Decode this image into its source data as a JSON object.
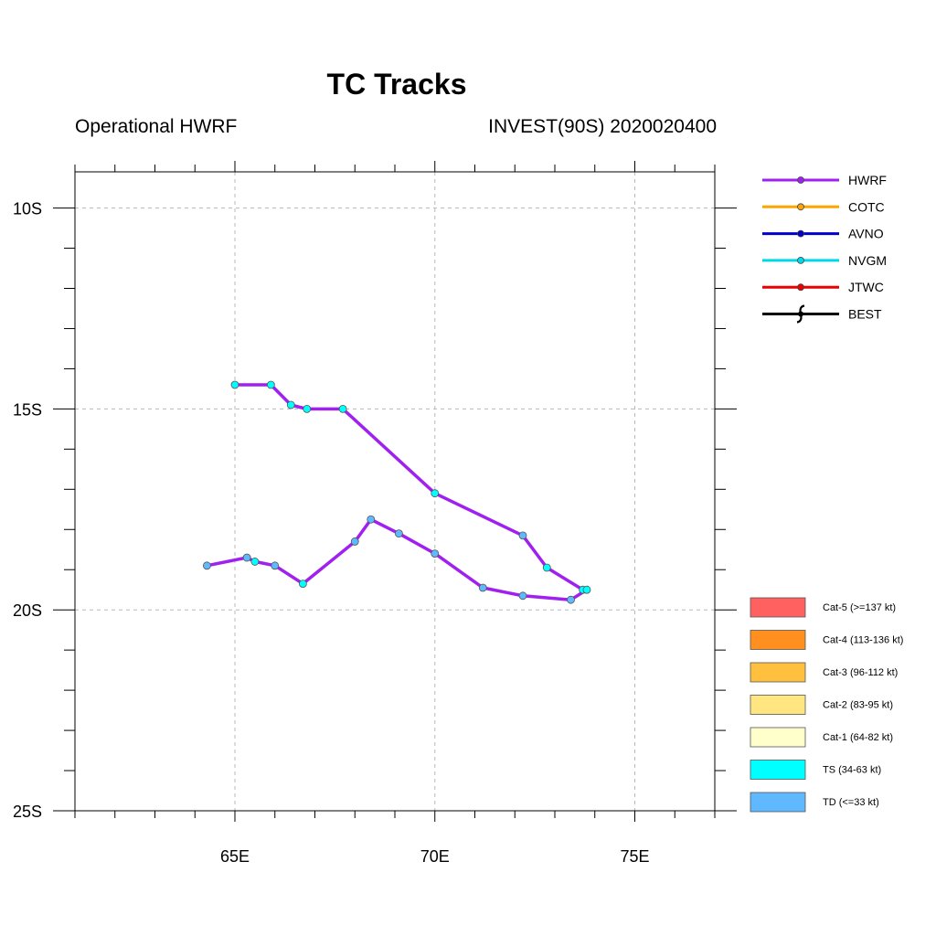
{
  "chart_data": {
    "type": "line",
    "title": "TC Tracks",
    "subtitle_left": "Operational HWRF",
    "subtitle_right": "INVEST(90S) 2020020400",
    "xlim": [
      61,
      77
    ],
    "ylim": [
      -25,
      -9.1
    ],
    "x_ticks": [
      {
        "value": 65,
        "label": "65E"
      },
      {
        "value": 70,
        "label": "70E"
      },
      {
        "value": 75,
        "label": "75E"
      }
    ],
    "y_ticks": [
      {
        "value": -10,
        "label": "10S"
      },
      {
        "value": -15,
        "label": "15S"
      },
      {
        "value": -20,
        "label": "20S"
      },
      {
        "value": -25,
        "label": "25S"
      }
    ],
    "grid": true,
    "legend_placement": "right",
    "series": [
      {
        "name": "HWRF",
        "color": "#a020f0",
        "points": [
          {
            "lon": 65.0,
            "lat": -14.4,
            "cat": "TS"
          },
          {
            "lon": 65.9,
            "lat": -14.4,
            "cat": "TS"
          },
          {
            "lon": 66.4,
            "lat": -14.9,
            "cat": "TS"
          },
          {
            "lon": 66.8,
            "lat": -15.0,
            "cat": "TS"
          },
          {
            "lon": 67.7,
            "lat": -15.0,
            "cat": "TS"
          },
          {
            "lon": 70.0,
            "lat": -17.1,
            "cat": "TS"
          },
          {
            "lon": 72.2,
            "lat": -18.15,
            "cat": "TD"
          },
          {
            "lon": 72.8,
            "lat": -18.95,
            "cat": "TS"
          },
          {
            "lon": 73.7,
            "lat": -19.5,
            "cat": "TS"
          },
          {
            "lon": 73.8,
            "lat": -19.5,
            "cat": "TS"
          },
          {
            "lon": 73.4,
            "lat": -19.75,
            "cat": "TD"
          },
          {
            "lon": 72.2,
            "lat": -19.65,
            "cat": "TD"
          },
          {
            "lon": 71.2,
            "lat": -19.45,
            "cat": "TD"
          },
          {
            "lon": 70.0,
            "lat": -18.6,
            "cat": "TD"
          },
          {
            "lon": 69.1,
            "lat": -18.1,
            "cat": "TD"
          },
          {
            "lon": 68.4,
            "lat": -17.75,
            "cat": "TD"
          },
          {
            "lon": 68.0,
            "lat": -18.3,
            "cat": "TD"
          },
          {
            "lon": 66.7,
            "lat": -19.35,
            "cat": "TS"
          },
          {
            "lon": 66.0,
            "lat": -18.9,
            "cat": "TD"
          },
          {
            "lon": 65.5,
            "lat": -18.8,
            "cat": "TS"
          },
          {
            "lon": 65.3,
            "lat": -18.7,
            "cat": "TD"
          },
          {
            "lon": 64.3,
            "lat": -18.9,
            "cat": "TD"
          }
        ]
      }
    ],
    "legend": [
      {
        "name": "HWRF",
        "color": "#a020f0",
        "marker": "circle"
      },
      {
        "name": "COTC",
        "color": "#ffa500",
        "marker": "circle"
      },
      {
        "name": "AVNO",
        "color": "#0000cd",
        "marker": "circle"
      },
      {
        "name": "NVGM",
        "color": "#00d8e8",
        "marker": "circle"
      },
      {
        "name": "JTWC",
        "color": "#ee0000",
        "marker": "circle"
      },
      {
        "name": "BEST",
        "color": "#000000",
        "marker": "hurricane"
      }
    ],
    "categories": [
      {
        "key": "Cat-5",
        "label": "Cat-5 (>=137 kt)",
        "color": "#ff6060"
      },
      {
        "key": "Cat-4",
        "label": "Cat-4 (113-136 kt)",
        "color": "#ff9020"
      },
      {
        "key": "Cat-3",
        "label": "Cat-3 (96-112 kt)",
        "color": "#ffc040"
      },
      {
        "key": "Cat-2",
        "label": "Cat-2 (83-95 kt)",
        "color": "#ffe680"
      },
      {
        "key": "Cat-1",
        "label": "Cat-1 (64-82 kt)",
        "color": "#ffffcc"
      },
      {
        "key": "TS",
        "label": "TS (34-63 kt)",
        "color": "#00ffff"
      },
      {
        "key": "TD",
        "label": "TD (<=33 kt)",
        "color": "#60b8ff"
      }
    ]
  }
}
